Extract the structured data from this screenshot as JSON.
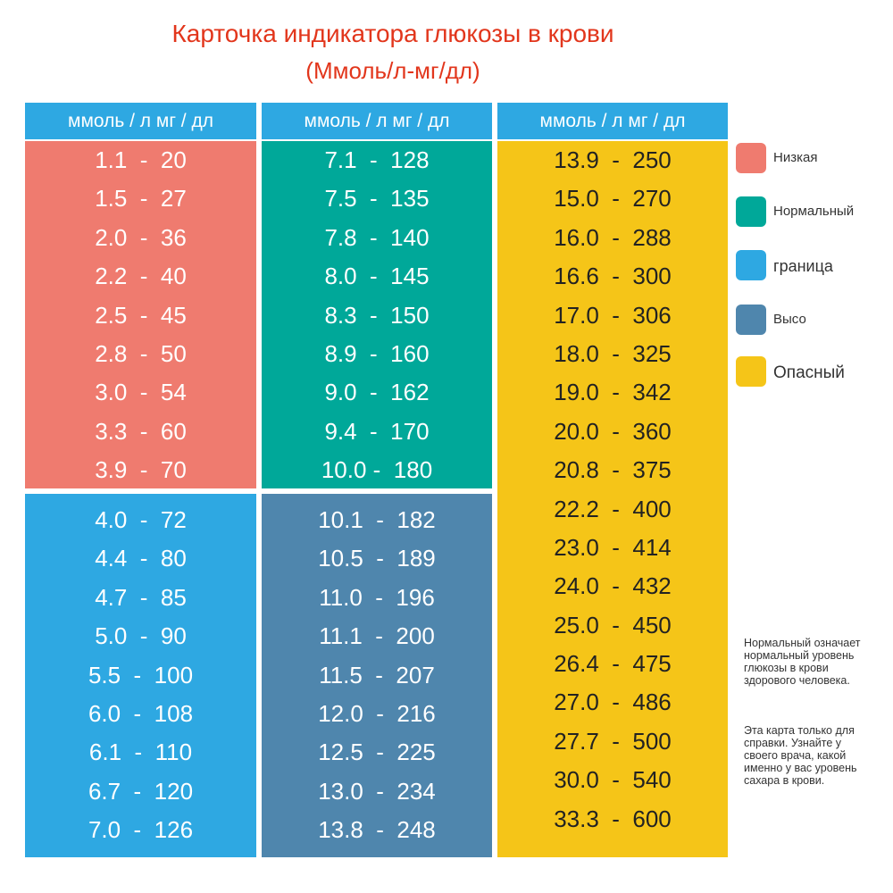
{
  "header": {
    "title": "Карточка индикатора глюкозы в крови",
    "subtitle": "(Ммоль/л-мг/дл)"
  },
  "columns": [
    {
      "header": "ммоль / л мг / дл",
      "blocks": [
        {
          "rows": [
            "1.1  -  20",
            "1.5  -  27",
            "2.0  -  36",
            "2.2  -  40",
            "2.5  -  45",
            "2.8  -  50",
            "3.0  -  54",
            "3.3  -  60",
            "3.9  -  70"
          ]
        },
        {
          "rows": [
            "4.0  -  72",
            "4.4  -  80",
            "4.7  -  85",
            "5.0  -  90",
            "5.5  -  100",
            "6.0  -  108",
            "6.1  -  110",
            "6.7  -  120",
            "7.0  -  126"
          ]
        }
      ]
    },
    {
      "header": "ммоль / л мг / дл",
      "blocks": [
        {
          "rows": [
            "7.1  -  128",
            "7.5  -  135",
            "7.8  -  140",
            "8.0  -  145",
            "8.3  -  150",
            "8.9  -  160",
            "9.0  -  162",
            "9.4  -  170",
            "10.0 -  180"
          ]
        },
        {
          "rows": [
            "10.1  -  182",
            "10.5  -  189",
            "11.0  -  196",
            "11.1  -  200",
            "11.5  -  207",
            "12.0  -  216",
            "12.5  -  225",
            "13.0  -  234",
            "13.8  -  248"
          ]
        }
      ]
    },
    {
      "header": "ммоль / л мг / дл",
      "blocks": [
        {
          "rows": [
            "13.9  -  250",
            "15.0  -  270",
            "16.0  -  288",
            "16.6  -  300",
            "17.0  -  306",
            "18.0  -  325",
            "19.0  -  342",
            "20.0  -  360",
            "20.8  -  375",
            "22.2  -  400",
            "23.0  -  414",
            "24.0  -  432",
            "25.0  -  450",
            "26.4  -  475",
            "27.0  -  486",
            "27.7  -  500",
            "30.0  -  540",
            "33.3  -  600"
          ]
        }
      ]
    }
  ],
  "legend": {
    "items": [
      "Низкая",
      "Нормальный",
      "граница",
      "Высо",
      "Опасный"
    ]
  },
  "note": {
    "paragraphs": [
      "Нормальный означает нормальный уровень глюкозы в крови здорового человека.",
      "Эта карта только для справки. Узнайте у своего врача, какой именно у вас уровень сахара в крови."
    ]
  }
}
